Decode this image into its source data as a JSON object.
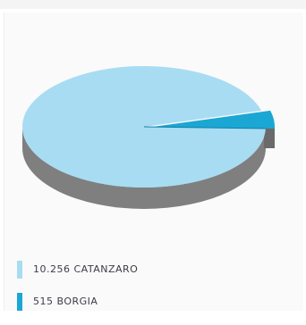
{
  "header": {
    "partial_text": ""
  },
  "chart_data": {
    "type": "pie",
    "style": "3d",
    "labels": [
      "10.256 CATANZARO",
      "515 BORGIA"
    ],
    "categories": [
      "CATANZARO",
      "BORGIA"
    ],
    "values": [
      10256,
      515
    ],
    "colors": [
      "#a8dcf2",
      "#1ba7d4"
    ],
    "side_colors": [
      "#7f7f7f",
      "#6a6a6a"
    ],
    "legend_placement": "bottom-left",
    "title": ""
  }
}
